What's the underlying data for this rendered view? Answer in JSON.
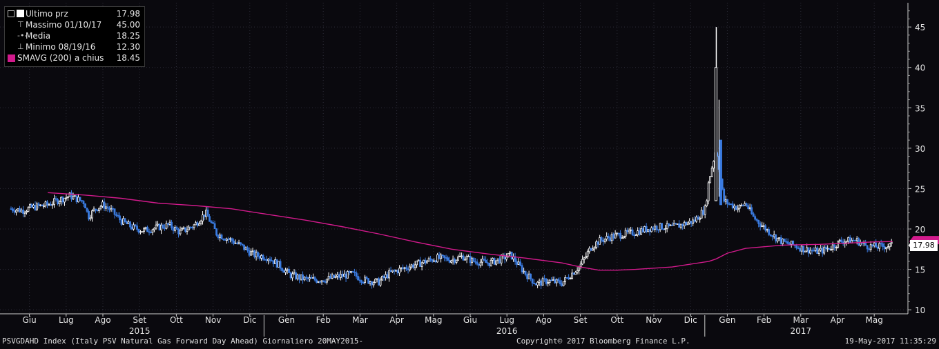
{
  "legend": {
    "items": [
      {
        "label": "Ultimo prz",
        "value": "17.98",
        "icon": "white-square-icon"
      },
      {
        "label": "Massimo 01/10/17",
        "value": "45.00",
        "icon": "max-marker-icon"
      },
      {
        "label": "Media",
        "value": "18.25",
        "icon": "mean-marker-icon"
      },
      {
        "label": "Minimo 08/19/16",
        "value": "12.30",
        "icon": "min-marker-icon"
      },
      {
        "label": "SMAVG (200) a chius",
        "value": "18.45",
        "icon": "pink-square-icon"
      }
    ]
  },
  "last_price_badge": "17.98",
  "footer": {
    "left": "PSVGDAHD Index (Italy PSV Natural Gas Forward Day Ahead)  Giornaliero 20MAY2015-",
    "center": "Copyright© 2017 Bloomberg Finance L.P.",
    "right": "19-May-2017 11:35:29"
  },
  "colors": {
    "background": "#0a090e",
    "sma": "#d21a8c",
    "up_candle": "#ffffff",
    "down_candle": "#3a7be0",
    "grid": "#2e2e3a"
  },
  "chart_data": {
    "type": "line",
    "title": "",
    "xlabel": "",
    "ylabel": "",
    "ylim": [
      9.5,
      48
    ],
    "yticks": [
      10,
      15,
      20,
      25,
      30,
      35,
      40,
      45
    ],
    "grid": true,
    "y_axis_position": "right",
    "month_ticks": [
      {
        "label": "Giu",
        "x": 0.5
      },
      {
        "label": "Lug",
        "x": 1.5
      },
      {
        "label": "Ago",
        "x": 2.5
      },
      {
        "label": "Set",
        "x": 3.5
      },
      {
        "label": "Ott",
        "x": 4.5
      },
      {
        "label": "Nov",
        "x": 5.5
      },
      {
        "label": "Dic",
        "x": 6.5
      },
      {
        "label": "Gen",
        "x": 7.5
      },
      {
        "label": "Feb",
        "x": 8.5
      },
      {
        "label": "Mar",
        "x": 9.5
      },
      {
        "label": "Apr",
        "x": 10.5
      },
      {
        "label": "Mag",
        "x": 11.5
      },
      {
        "label": "Giu",
        "x": 12.5
      },
      {
        "label": "Lug",
        "x": 13.5
      },
      {
        "label": "Ago",
        "x": 14.5
      },
      {
        "label": "Set",
        "x": 15.5
      },
      {
        "label": "Ott",
        "x": 16.5
      },
      {
        "label": "Nov",
        "x": 17.5
      },
      {
        "label": "Dic",
        "x": 18.5
      },
      {
        "label": "Gen",
        "x": 19.5
      },
      {
        "label": "Feb",
        "x": 20.5
      },
      {
        "label": "Mar",
        "x": 21.5
      },
      {
        "label": "Apr",
        "x": 22.5
      },
      {
        "label": "Mag",
        "x": 23.5
      }
    ],
    "year_labels": [
      {
        "label": "2015",
        "x": 3.5
      },
      {
        "label": "2016",
        "x": 13.5
      },
      {
        "label": "2017",
        "x": 21.5
      }
    ],
    "year_separators": [
      7,
      19
    ],
    "x_range": [
      0,
      24.15
    ],
    "series": [
      {
        "type": "price",
        "x": [
          0,
          0.3,
          0.6,
          1,
          1.3,
          1.6,
          2,
          2.1,
          2.3,
          2.5,
          2.7,
          3,
          3.3,
          3.6,
          4,
          4.3,
          4.6,
          5,
          5.3,
          5.6,
          6,
          6.3,
          6.6,
          7,
          7.3,
          7.6,
          8,
          8.3,
          8.6,
          9,
          9.3,
          9.6,
          10,
          10.3,
          10.6,
          11,
          11.3,
          11.6,
          12,
          12.3,
          12.6,
          13,
          13.3,
          13.6,
          14,
          14.3,
          14.6,
          15,
          15.2,
          15.5,
          15.8,
          16,
          16.3,
          16.6,
          17,
          17.3,
          17.6,
          18,
          18.3,
          18.6,
          18.9,
          19,
          19.2,
          19.4,
          19.6,
          19.8,
          20,
          20.2,
          20.5,
          20.8,
          21,
          21.3,
          21.6,
          22,
          22.3,
          22.6,
          23,
          23.3,
          23.6,
          24
        ],
        "y": [
          22.5,
          22.3,
          22.7,
          23.0,
          23.6,
          24.1,
          23.3,
          21.5,
          22.5,
          23.0,
          22.4,
          21.0,
          20.2,
          19.8,
          20.2,
          20.5,
          19.6,
          20.5,
          22.0,
          19.4,
          18.6,
          17.8,
          16.8,
          16.5,
          15.5,
          14.3,
          13.8,
          13.7,
          13.8,
          14.2,
          14.4,
          13.7,
          13.4,
          14.5,
          15.0,
          15.6,
          16.0,
          16.4,
          16.2,
          16.6,
          16.0,
          15.8,
          16.2,
          16.8,
          14.5,
          13.2,
          13.6,
          13.3,
          14.2,
          15.5,
          17.8,
          18.5,
          19.0,
          19.3,
          19.6,
          20.0,
          20.3,
          20.2,
          20.6,
          21.0,
          22.5,
          26.0,
          30.0,
          23.5,
          23.0,
          22.6,
          23.2,
          21.5,
          20.2,
          19.0,
          18.4,
          18.0,
          17.5,
          17.2,
          17.7,
          18.5,
          18.6,
          17.9,
          17.8,
          17.98
        ]
      },
      {
        "name": "SMAVG (200) a chius",
        "type": "sma",
        "x": [
          1,
          2,
          3,
          4,
          5,
          6,
          7,
          8,
          9,
          10,
          11,
          12,
          13,
          14,
          15,
          15.5,
          16,
          16.5,
          17,
          18,
          19,
          19.2,
          19.5,
          20,
          21,
          22,
          23,
          23.5,
          24
        ],
        "y": [
          24.5,
          24.2,
          23.8,
          23.2,
          22.9,
          22.5,
          21.8,
          21.1,
          20.3,
          19.4,
          18.4,
          17.5,
          16.9,
          16.4,
          15.8,
          15.3,
          14.9,
          14.9,
          15.0,
          15.3,
          16.0,
          16.3,
          17.0,
          17.6,
          18.0,
          18.1,
          18.3,
          18.4,
          18.45
        ]
      }
    ],
    "spike": {
      "x": 19.2,
      "high": 45.0,
      "low": 23.5
    },
    "max": {
      "label": "Massimo 01/10/17",
      "value": 45.0
    },
    "min": {
      "label": "Minimo 08/19/16",
      "value": 12.3
    },
    "mean": 18.25,
    "last": 17.98
  }
}
